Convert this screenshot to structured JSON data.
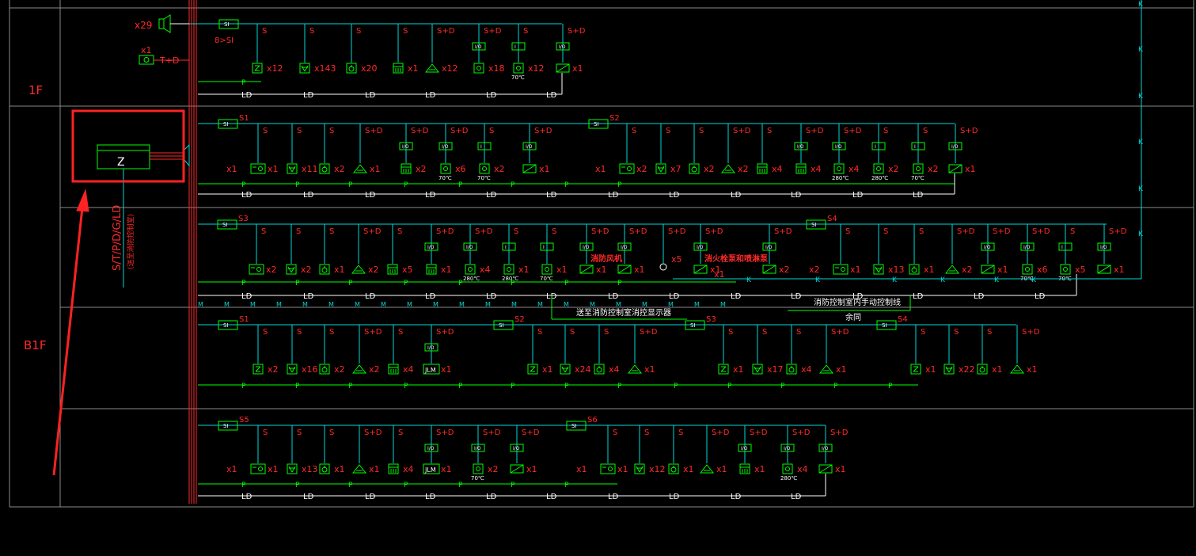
{
  "floors": {
    "f1": "1F",
    "b1": "B1F"
  },
  "panel": {
    "label": "Z",
    "riser_text": "S/T/P/D/G/LD",
    "riser_note": "(送至消防控制室)"
  },
  "colors": {
    "background": "#000000",
    "grid": "#8a8a8a",
    "bus": "#00d8d8",
    "device": "#00ff00",
    "label": "#ff2a2a",
    "riser": "#ff2a2a",
    "highlight": "#ff2222"
  },
  "line_labels": {
    "s": "S",
    "sd": "S+D",
    "p": "P",
    "ld": "LD",
    "k": "K",
    "si": "SI",
    "io": "I/O",
    "i": "I"
  },
  "speaker": {
    "count": "x29"
  },
  "tel": {
    "count": "x1",
    "label": "T+D"
  },
  "si_note": "8>SI",
  "loops": {
    "s1": "S1",
    "s2": "S2",
    "s3": "S3",
    "s4": "S4",
    "s5": "S5",
    "s6": "S6"
  },
  "temps": {
    "t70": "70℃",
    "t280": "280℃"
  },
  "jlm": "JLM",
  "row1_counts": [
    "x12",
    "x143",
    "x20",
    "x1",
    "x12",
    "x18",
    "x12",
    "x1"
  ],
  "row2_counts": [
    "x1",
    "x1",
    "x11",
    "x2",
    "x1",
    "x2",
    "x6",
    "x2",
    "x1",
    "x1",
    "x2",
    "x7",
    "x2",
    "x2",
    "x4",
    "x4",
    "x4",
    "x2",
    "x2",
    "x1"
  ],
  "row3_counts": [
    "x2",
    "x2",
    "x1",
    "x2",
    "x5",
    "x1",
    "x4",
    "x1",
    "x1",
    "x1",
    "x1",
    "x5",
    "x1",
    "x2",
    "x2",
    "x1",
    "x13",
    "x1",
    "x2",
    "x1",
    "x6",
    "x5",
    "x1"
  ],
  "row4_counts": [
    "x2",
    "x16",
    "x2",
    "x2",
    "x4",
    "x1",
    "x1",
    "x24",
    "x4",
    "x1",
    "x1",
    "x17",
    "x4",
    "x1",
    "x1",
    "x22",
    "x1",
    "x1"
  ],
  "row5_counts": [
    "x1",
    "x1",
    "x13",
    "x1",
    "x1",
    "x4",
    "x1",
    "x2",
    "x1",
    "x1",
    "x1",
    "x12",
    "x1",
    "x1",
    "x1",
    "x4",
    "x1"
  ],
  "notes": {
    "smoke_fan": "消防风机",
    "hydrant_pump": "消火栓泵和喷淋泵",
    "to_display": "送至消防控制室消控显示器",
    "manual_control": "消防控制室内手动控制线",
    "same": "余同"
  }
}
